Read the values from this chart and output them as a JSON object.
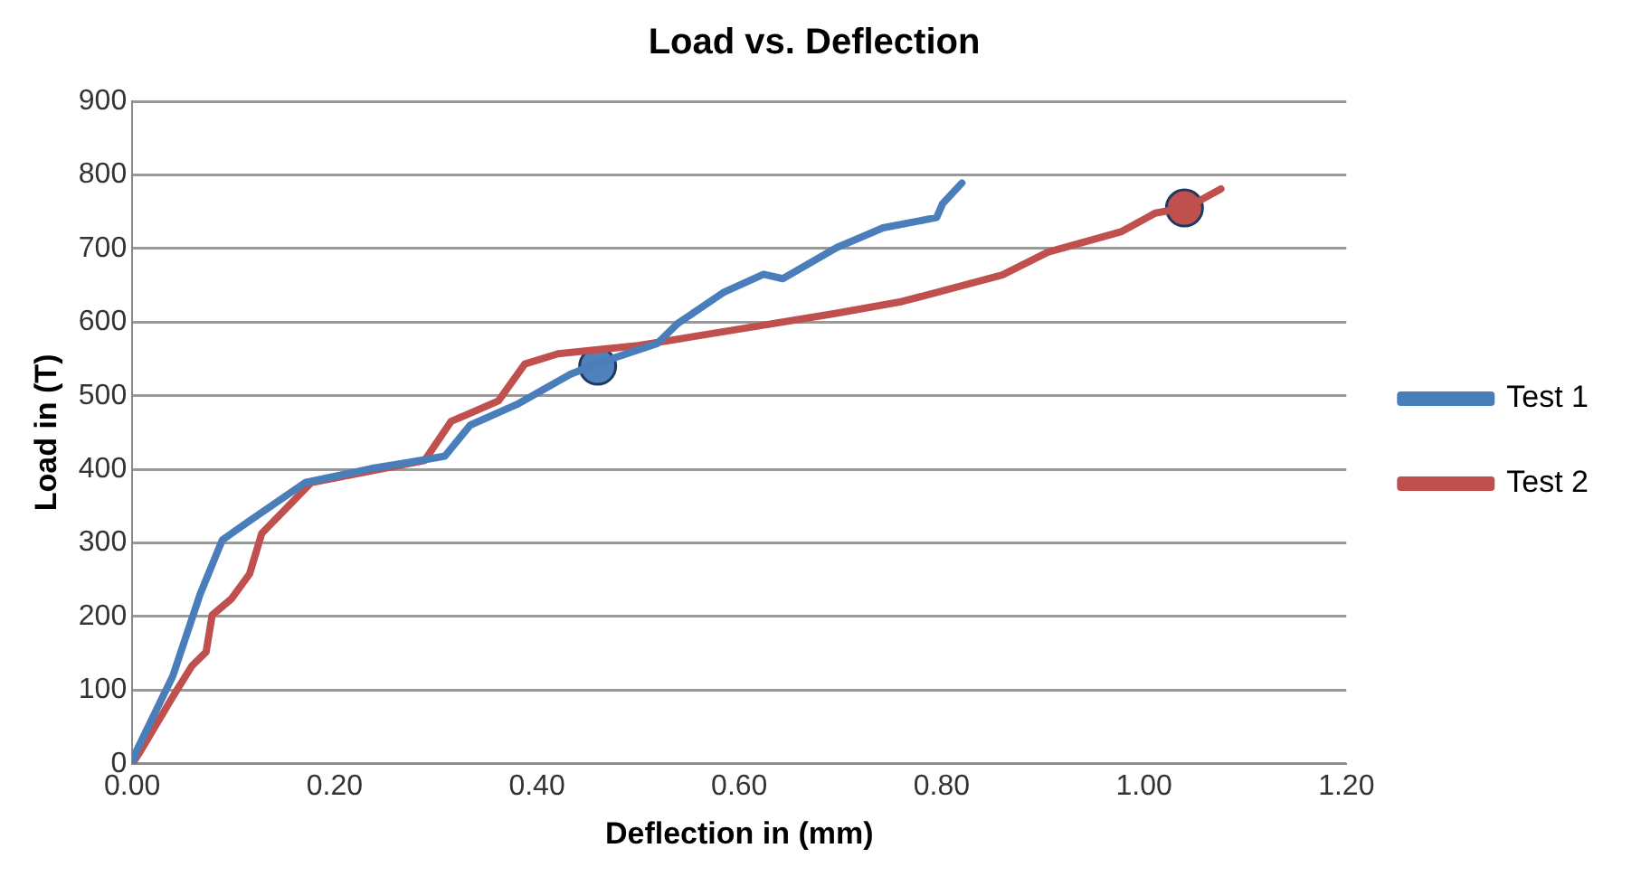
{
  "chart_data": {
    "type": "line",
    "title": "Load vs. Deflection",
    "xlabel": "Deflection in (mm)",
    "ylabel": "Load in (T)",
    "xlim": [
      0,
      1.2
    ],
    "xticks": [
      {
        "value": 0,
        "label": "0.00"
      },
      {
        "value": 0.2,
        "label": "0.20"
      },
      {
        "value": 0.4,
        "label": "0.40"
      },
      {
        "value": 0.6,
        "label": "0.60"
      },
      {
        "value": 0.8,
        "label": "0.80"
      },
      {
        "value": 1,
        "label": "1.00"
      },
      {
        "value": 1.2,
        "label": "1.20"
      }
    ],
    "ylim": [
      0,
      900
    ],
    "yticks": [
      0,
      100,
      200,
      300,
      400,
      500,
      600,
      700,
      800,
      900
    ],
    "grid": "y",
    "legend": "right",
    "line_style": "solid",
    "series": [
      {
        "name": "Test 1",
        "marker": "none",
        "color": "#4a7ebb",
        "x": [
          0,
          0.004,
          0.04,
          0.067,
          0.089,
          0.118,
          0.171,
          0.236,
          0.289,
          0.309,
          0.334,
          0.38,
          0.433,
          0.458,
          0.519,
          0.539,
          0.584,
          0.624,
          0.643,
          0.696,
          0.742,
          0.795,
          0.801,
          0.82
        ],
        "values": [
          0,
          17,
          119,
          230,
          304,
          332,
          382,
          401,
          413,
          418,
          460,
          488,
          529,
          543,
          571,
          598,
          640,
          665,
          659,
          701,
          728,
          742,
          761,
          789
        ]
      },
      {
        "name": "Test 2",
        "marker": "none",
        "color": "#c0504d",
        "x": [
          0,
          0.008,
          0.04,
          0.059,
          0.073,
          0.079,
          0.098,
          0.116,
          0.128,
          0.177,
          0.289,
          0.315,
          0.362,
          0.388,
          0.421,
          0.5,
          0.598,
          0.696,
          0.761,
          0.86,
          0.905,
          0.978,
          1.011,
          1.043,
          1.076
        ],
        "values": [
          0,
          17,
          91,
          133,
          152,
          202,
          224,
          258,
          313,
          382,
          412,
          465,
          493,
          543,
          557,
          568,
          590,
          612,
          628,
          664,
          695,
          723,
          748,
          756,
          781
        ]
      },
      {
        "type": "scatter",
        "marker": "circle",
        "color": "#4f81bd",
        "x": [
          0.46
        ],
        "values": [
          540
        ]
      },
      {
        "type": "scatter",
        "marker": "circle",
        "color": "#c0504d",
        "x": [
          1.04
        ],
        "values": [
          755
        ]
      }
    ]
  }
}
